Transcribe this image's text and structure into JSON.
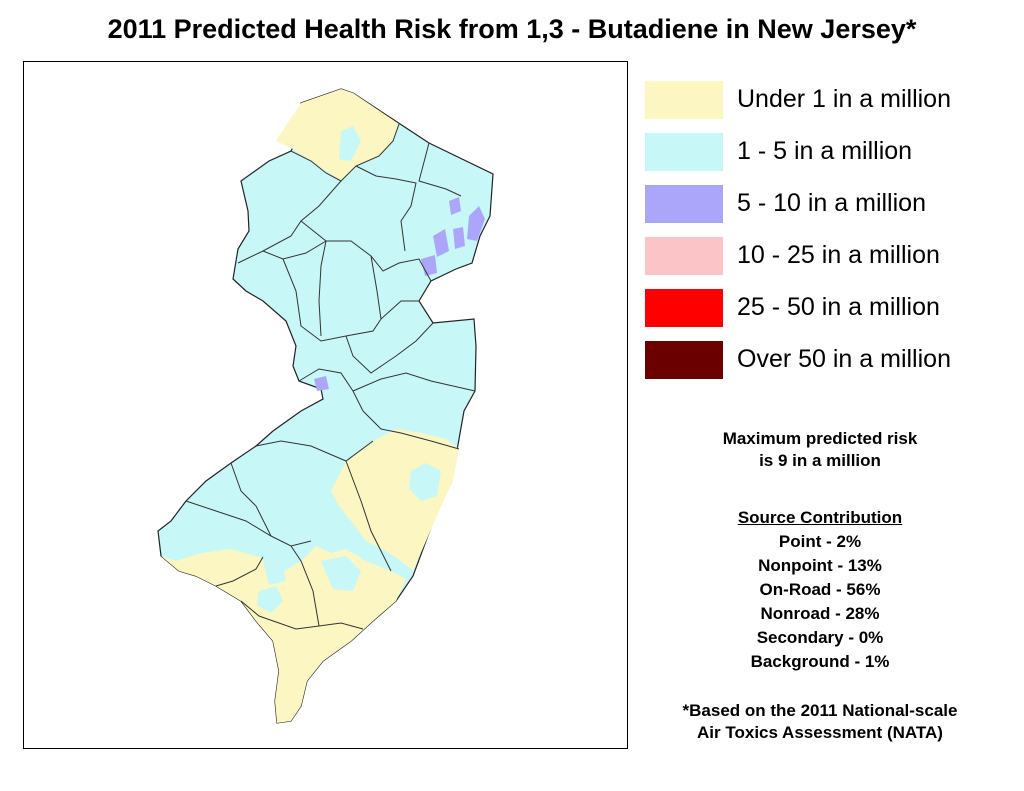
{
  "title": "2011 Predicted Health Risk from 1,3 - Butadiene in New Jersey*",
  "legend": [
    {
      "label": "Under 1 in a million",
      "color": "#FCF6C2"
    },
    {
      "label": "1 - 5 in a million",
      "color": "#C8F7F7"
    },
    {
      "label": "5 - 10 in a million",
      "color": "#ABA6FA"
    },
    {
      "label": "10 - 25 in a million",
      "color": "#FBC4C6"
    },
    {
      "label": "25 - 50 in a million",
      "color": "#FF0000"
    },
    {
      "label": "Over 50 in a million",
      "color": "#6B0000"
    }
  ],
  "max_risk": {
    "line1": "Maximum predicted risk",
    "line2": "is 9 in a million"
  },
  "source_contribution": {
    "heading": "Source Contribution",
    "items": [
      "Point -  2%",
      "Nonpoint - 13%",
      "On-Road - 56%",
      "Nonroad - 28%",
      "Secondary - 0%",
      "Background - 1%"
    ]
  },
  "footnote": {
    "line1": "*Based on the 2011 National-scale",
    "line2": "Air Toxics Assessment (NATA)"
  },
  "colors": {
    "under1": "#FCF6C2",
    "one_to_five": "#C8F7F7",
    "five_to_ten": "#ABA6FA",
    "border": "#333333"
  }
}
